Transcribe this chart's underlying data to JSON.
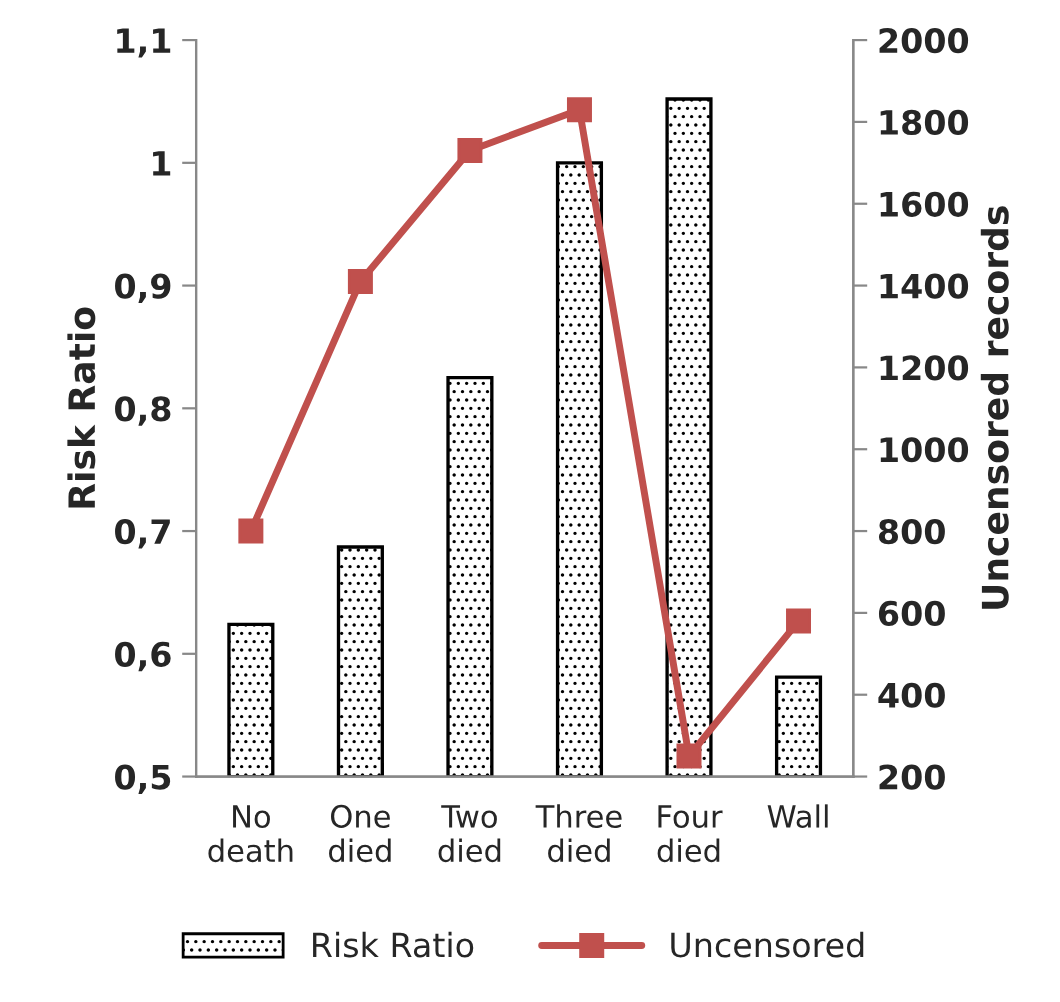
{
  "chart_data": {
    "type": "bar",
    "categories": [
      "No\ndeath",
      "One\ndied",
      "Two\ndied",
      "Three\ndied",
      "Four\ndied",
      "Wall"
    ],
    "ylabel": "Risk Ratio",
    "y2label": "Uncensored records",
    "series": [
      {
        "name": "Risk Ratio",
        "color": "#000000",
        "values": [
          0.624,
          0.687,
          0.825,
          1.0,
          1.052,
          0.581
        ]
      },
      {
        "name": "Uncensored",
        "type": "line",
        "axis": "y2",
        "color": "#c0504d",
        "marker": "square",
        "values": [
          800,
          1410,
          1730,
          1830,
          250,
          580
        ]
      }
    ],
    "ylim": [
      0.5,
      1.1
    ],
    "yticks": [
      {
        "value": 0.5,
        "label": "0,5"
      },
      {
        "value": 0.6,
        "label": "0,6"
      },
      {
        "value": 0.7,
        "label": "0,7"
      },
      {
        "value": 0.8,
        "label": "0,8"
      },
      {
        "value": 0.9,
        "label": "0,9"
      },
      {
        "value": 1.0,
        "label": "1"
      },
      {
        "value": 1.1,
        "label": "1,1"
      }
    ],
    "y2lim": [
      200,
      2000
    ],
    "y2ticks": [
      200,
      400,
      600,
      800,
      1000,
      1200,
      1400,
      1600,
      1800,
      2000
    ],
    "grid": false,
    "legend": "bottom"
  }
}
